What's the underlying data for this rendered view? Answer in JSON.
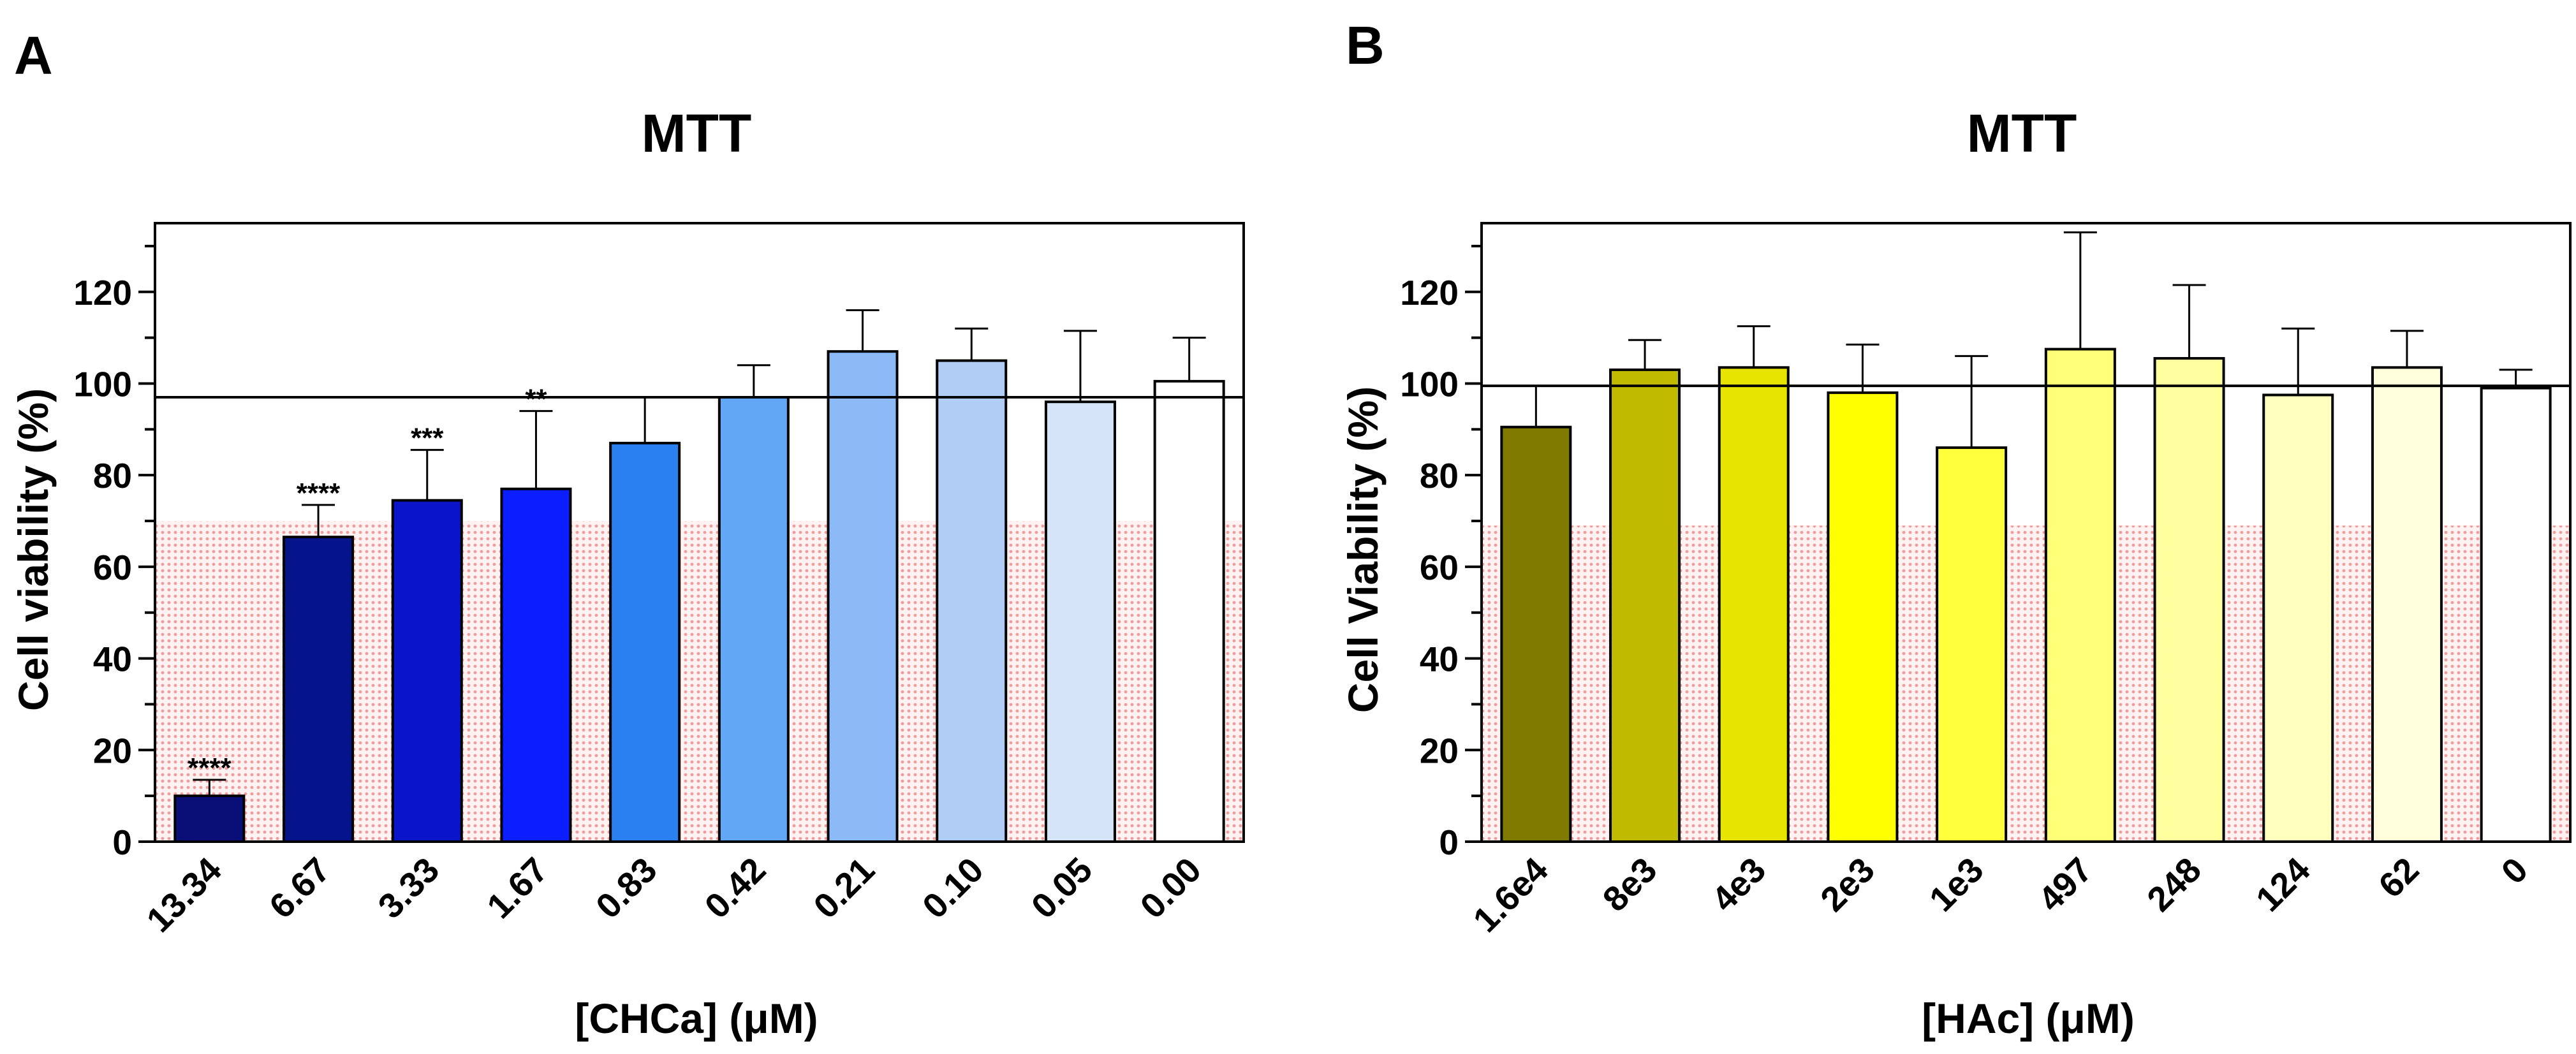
{
  "chart_data": [
    {
      "panel": "A",
      "type": "bar",
      "title": "MTT",
      "xlabel": "[CHCa] (μM)",
      "ylabel": "Cell viability (%)",
      "ylim": [
        0,
        135
      ],
      "yticks": [
        0,
        20,
        40,
        60,
        80,
        100,
        120
      ],
      "reference_line": 97,
      "toxicity_band": [
        0,
        70
      ],
      "categories": [
        "13.34",
        "6.67",
        "3.33",
        "1.67",
        "0.83",
        "0.42",
        "0.21",
        "0.10",
        "0.05",
        "0.00"
      ],
      "values": [
        10,
        66.5,
        74.5,
        77,
        87,
        97,
        107,
        105,
        96,
        100.5
      ],
      "errors": [
        3.5,
        7,
        11,
        17,
        10,
        7,
        9,
        7,
        15.5,
        9.5
      ],
      "significance": [
        "****",
        "****",
        "***",
        "**",
        "",
        "",
        "",
        "",
        "",
        ""
      ],
      "colors": [
        "#0A0F78",
        "#06148C",
        "#0A14C8",
        "#0A1EFF",
        "#2A80F0",
        "#62A6F6",
        "#8CBAF6",
        "#B0CDF6",
        "#D6E4F8",
        "#FFFFFF"
      ]
    },
    {
      "panel": "B",
      "type": "bar",
      "title": "MTT",
      "xlabel": "[HAc] (μM)",
      "ylabel": "Cell Viability (%)",
      "ylim": [
        0,
        135
      ],
      "yticks": [
        0,
        20,
        40,
        60,
        80,
        100,
        120
      ],
      "reference_line": 99.5,
      "toxicity_band": [
        0,
        69
      ],
      "categories": [
        "1.6e4",
        "8e3",
        "4e3",
        "2e3",
        "1e3",
        "497",
        "248",
        "124",
        "62",
        "0"
      ],
      "values": [
        90.5,
        103,
        103.5,
        98,
        86,
        107.5,
        105.5,
        97.5,
        103.5,
        99
      ],
      "errors": [
        9,
        6.5,
        9,
        10.5,
        20,
        25.5,
        16,
        14.5,
        8,
        4
      ],
      "significance": [
        "",
        "",
        "",
        "",
        "",
        "",
        "",
        "",
        "",
        ""
      ],
      "colors": [
        "#807A00",
        "#C0BB00",
        "#E6E400",
        "#FFFF00",
        "#FFFF3C",
        "#FFFF78",
        "#FFFFA0",
        "#FFFFBE",
        "#FFFFDC",
        "#FFFFFF"
      ]
    }
  ]
}
